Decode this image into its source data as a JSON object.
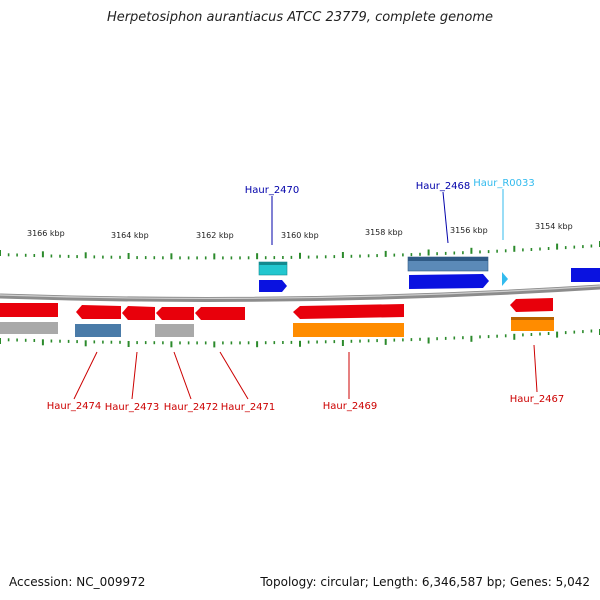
{
  "title": "Herpetosiphon aurantiacus ATCC 23779, complete genome",
  "footer": {
    "accession": "Accession: NC_009972",
    "summary": "Topology: circular; Length: 6,346,587 bp; Genes: 5,042"
  },
  "colors": {
    "backbone": "#8c8c8c",
    "tick": "#2b8a2b",
    "red_gene": "#e8000b",
    "blue_gene": "#0a12e0",
    "steelblue_gene": "#4a7ba8",
    "gray_gene": "#a9a9a9",
    "orange_gene": "#ff8c00",
    "cyan_gene": "#22c7cf",
    "top_label": "#0000aa",
    "rna_label": "#33bbee",
    "bottom_label": "#cc0000"
  },
  "scale_labels": [
    "3166 kbp",
    "3164 kbp",
    "3162 kbp",
    "3160 kbp",
    "3158 kbp",
    "3156 kbp",
    "3154 kbp"
  ],
  "gene_labels_top": [
    {
      "text": "Haur_2470",
      "color_key": "top_label"
    },
    {
      "text": "Haur_2468",
      "color_key": "top_label"
    },
    {
      "text": "Haur_R0033",
      "color_key": "rna_label"
    }
  ],
  "gene_labels_bottom": [
    {
      "text": "Haur_2474"
    },
    {
      "text": "Haur_2473"
    },
    {
      "text": "Haur_2472"
    },
    {
      "text": "Haur_2471"
    },
    {
      "text": "Haur_2469"
    },
    {
      "text": "Haur_2467"
    }
  ]
}
